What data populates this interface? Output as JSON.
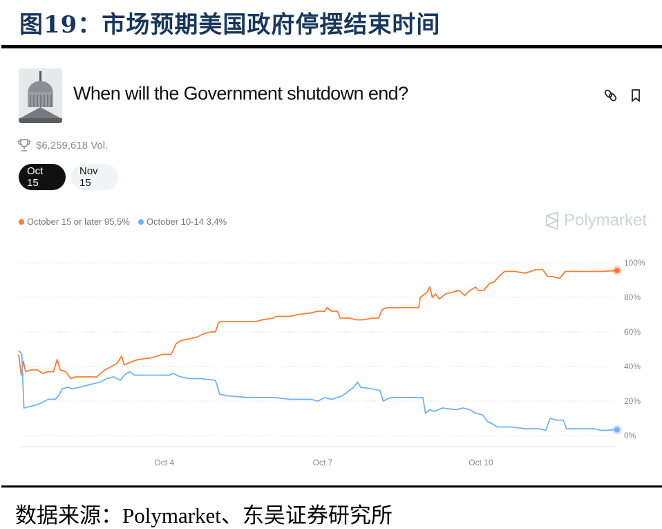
{
  "figure_title": "图19：市场预期美国政府停摆结束时间",
  "source_note": "数据来源：Polymarket、东吴证券研究所",
  "market": {
    "title": "When will the Government shutdown end?",
    "volume": "$6,259,618 Vol.",
    "tabs": [
      {
        "label": "Oct 15",
        "active": true
      },
      {
        "label": "Nov 15",
        "active": false
      }
    ],
    "icons": [
      "capitol-thumbnail",
      "link-icon",
      "bookmark-icon",
      "trophy-icon"
    ],
    "brand": "Polymarket"
  },
  "chart_data": {
    "type": "line",
    "title": "",
    "xlabel": "",
    "ylabel": "",
    "x_unit": "day of October",
    "xlim": [
      1.24,
      12.58
    ],
    "ylim": [
      0,
      100
    ],
    "x_ticks": [
      {
        "value": 4,
        "label": "Oct 4"
      },
      {
        "value": 7,
        "label": "Oct 7"
      },
      {
        "value": 10,
        "label": "Oct 10"
      }
    ],
    "y_ticks": [
      {
        "value": 100,
        "label": "100%"
      },
      {
        "value": 80,
        "label": "80%"
      },
      {
        "value": 60,
        "label": "60%"
      },
      {
        "value": 40,
        "label": "40%"
      },
      {
        "value": 20,
        "label": "20%"
      },
      {
        "value": 0,
        "label": "0%"
      }
    ],
    "grid": "horizontal dotted",
    "legend_position": "top-left",
    "series": [
      {
        "name": "October 15 or later",
        "legend_label": "October 15 or later 95.5%",
        "color": "#ff7a2f",
        "x": [
          1.24,
          1.29,
          1.33,
          1.37,
          1.47,
          1.6,
          1.69,
          1.8,
          1.9,
          1.97,
          2.03,
          2.13,
          2.23,
          2.32,
          2.45,
          2.72,
          2.87,
          3.0,
          3.11,
          3.19,
          3.24,
          3.4,
          3.5,
          3.76,
          3.96,
          4.13,
          4.22,
          4.31,
          4.48,
          4.62,
          4.75,
          4.88,
          4.97,
          5.02,
          5.07,
          5.21,
          5.73,
          5.86,
          6.06,
          6.12,
          6.38,
          6.52,
          6.78,
          6.91,
          7.04,
          7.08,
          7.17,
          7.28,
          7.33,
          7.5,
          7.63,
          7.76,
          7.96,
          8.06,
          8.13,
          8.22,
          8.48,
          8.74,
          8.82,
          8.85,
          8.98,
          9.03,
          9.08,
          9.14,
          9.21,
          9.33,
          9.46,
          9.59,
          9.69,
          9.79,
          9.9,
          9.95,
          10.05,
          10.16,
          10.25,
          10.34,
          10.45,
          10.64,
          10.84,
          11.04,
          11.17,
          11.27,
          11.36,
          11.49,
          11.6,
          11.89,
          12.15,
          12.28,
          12.58
        ],
        "y": [
          47,
          35,
          43,
          37,
          38,
          38,
          36,
          37,
          37,
          44,
          38,
          37,
          33,
          34,
          34,
          34,
          38,
          40,
          42,
          46,
          41,
          43,
          44,
          45,
          47,
          47,
          53,
          55,
          56,
          57,
          59,
          60,
          60,
          65,
          66,
          66,
          66,
          67,
          68,
          69,
          69,
          70,
          71,
          72,
          72,
          74,
          72,
          72,
          68,
          68,
          67,
          67,
          68,
          68,
          73,
          74,
          74,
          74,
          74,
          80,
          83,
          86,
          80,
          82,
          79,
          82,
          83,
          84,
          81,
          84,
          86,
          84,
          84,
          88,
          89,
          92,
          95,
          95,
          94,
          96,
          96,
          92,
          92,
          91,
          95,
          95,
          95,
          95,
          95.5
        ]
      },
      {
        "name": "October 10-14",
        "legend_label": "October 10-14 3.4%",
        "color": "#6fb1ff",
        "x": [
          1.24,
          1.28,
          1.3,
          1.34,
          1.47,
          1.6,
          1.67,
          1.8,
          1.93,
          2.0,
          2.06,
          2.17,
          2.26,
          2.39,
          2.52,
          2.65,
          2.78,
          2.91,
          3.04,
          3.17,
          3.24,
          3.34,
          3.44,
          3.63,
          3.9,
          4.09,
          4.16,
          4.31,
          4.48,
          4.68,
          4.97,
          5.05,
          5.21,
          5.6,
          6.12,
          6.38,
          6.65,
          6.78,
          6.91,
          7.04,
          7.17,
          7.37,
          7.5,
          7.59,
          7.66,
          7.72,
          7.96,
          8.09,
          8.15,
          8.28,
          8.48,
          8.74,
          8.9,
          8.95,
          9.03,
          9.11,
          9.27,
          9.53,
          9.66,
          9.79,
          9.9,
          10.03,
          10.13,
          10.21,
          10.31,
          10.58,
          10.84,
          11.1,
          11.23,
          11.31,
          11.43,
          11.56,
          11.62,
          11.89,
          12.15,
          12.28,
          12.58
        ],
        "y": [
          49,
          48,
          47,
          16,
          17,
          18,
          19,
          21,
          21,
          23,
          27,
          28,
          27,
          28,
          29,
          30,
          31,
          33,
          34,
          32,
          35,
          37,
          35,
          35,
          35,
          35,
          36,
          34,
          33,
          33,
          32,
          24,
          23,
          22,
          22,
          21,
          21,
          21,
          20,
          22,
          21,
          23,
          26,
          28,
          31,
          28,
          27,
          26,
          20,
          22,
          22,
          22,
          22,
          13,
          15,
          14,
          16,
          15,
          16,
          15,
          13,
          12,
          8,
          7,
          5,
          5,
          4,
          4,
          3,
          10,
          9,
          9,
          4,
          4,
          4,
          3,
          3.4
        ]
      }
    ]
  }
}
